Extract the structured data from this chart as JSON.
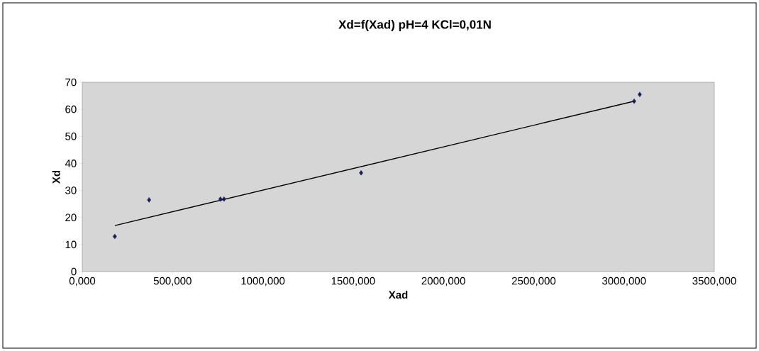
{
  "chart_data": {
    "type": "scatter",
    "title": "Xd=f(Xad) pH=4 KCl=0,01N",
    "xlabel": "Xad",
    "ylabel": "Xd",
    "series": [
      {
        "color": "#1c1c5c",
        "marker": "diamond",
        "x": [
          180,
          370,
          765,
          785,
          1544,
          3056,
          3087
        ],
        "values": [
          13,
          26.5,
          26.8,
          26.8,
          36.5,
          63,
          65.5
        ]
      },
      {
        "type": "line",
        "color": "#000000",
        "marker": "none",
        "line_style": "solid",
        "x": [
          180,
          3056
        ],
        "values": [
          17,
          63
        ]
      }
    ],
    "xlim": [
      0,
      3500
    ],
    "ylim": [
      0,
      70
    ],
    "xticks": [
      {
        "value": 0,
        "label": "0,000"
      },
      {
        "value": 500,
        "label": "500,000"
      },
      {
        "value": 1000,
        "label": "1000,000"
      },
      {
        "value": 1500,
        "label": "1500,000"
      },
      {
        "value": 2000,
        "label": "2000,000"
      },
      {
        "value": 2500,
        "label": "2500,000"
      },
      {
        "value": 3000,
        "label": "3000,000"
      },
      {
        "value": 3500,
        "label": "3500,000"
      }
    ],
    "yticks": [
      0,
      10,
      20,
      30,
      40,
      50,
      60,
      70
    ],
    "grid": false
  }
}
